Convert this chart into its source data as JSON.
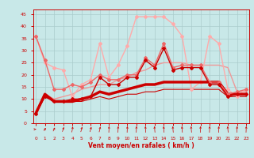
{
  "xlabel": "Vent moyen/en rafales ( km/h )",
  "bg_color": "#c8e8e8",
  "grid_color": "#aacccc",
  "xlim": [
    -0.3,
    23.3
  ],
  "ylim": [
    0,
    47
  ],
  "yticks": [
    0,
    5,
    10,
    15,
    20,
    25,
    30,
    35,
    40,
    45
  ],
  "xticks": [
    0,
    1,
    2,
    3,
    4,
    5,
    6,
    7,
    8,
    9,
    10,
    11,
    12,
    13,
    14,
    15,
    16,
    17,
    18,
    19,
    20,
    21,
    22,
    23
  ],
  "lines": [
    {
      "x": [
        0,
        1,
        2,
        3,
        4,
        5,
        6,
        7,
        8,
        9,
        10,
        11,
        12,
        13,
        14,
        15,
        16,
        17,
        18,
        19,
        20,
        21,
        22,
        23
      ],
      "y": [
        4,
        11,
        9,
        9,
        9,
        9,
        10,
        11,
        10,
        11,
        12,
        12,
        13,
        13,
        14,
        14,
        14,
        14,
        14,
        14,
        14,
        11,
        11,
        11
      ],
      "color": "#cc0000",
      "lw": 0.8,
      "marker": null,
      "zorder": 3
    },
    {
      "x": [
        0,
        1,
        2,
        3,
        4,
        5,
        6,
        7,
        8,
        9,
        10,
        11,
        12,
        13,
        14,
        15,
        16,
        17,
        18,
        19,
        20,
        21,
        22,
        23
      ],
      "y": [
        4,
        12,
        9,
        9,
        9,
        10,
        11,
        13,
        12,
        13,
        14,
        15,
        16,
        16,
        17,
        17,
        17,
        17,
        17,
        17,
        17,
        12,
        12,
        12
      ],
      "color": "#cc0000",
      "lw": 2.5,
      "marker": null,
      "zorder": 4
    },
    {
      "x": [
        0,
        1,
        2,
        3,
        4,
        5,
        6,
        7,
        8,
        9,
        10,
        11,
        12,
        13,
        14,
        15,
        16,
        17,
        18,
        19,
        20,
        21,
        22,
        23
      ],
      "y": [
        4,
        11,
        9,
        9,
        10,
        10,
        11,
        19,
        16,
        16,
        19,
        19,
        26,
        23,
        31,
        22,
        23,
        23,
        23,
        16,
        16,
        11,
        12,
        12
      ],
      "color": "#cc0000",
      "lw": 1.0,
      "marker": "D",
      "ms": 2.0,
      "zorder": 5
    },
    {
      "x": [
        0,
        1,
        2,
        3,
        4,
        5,
        6,
        7,
        8,
        9,
        10,
        11,
        12,
        13,
        14,
        15,
        16,
        17,
        18,
        19,
        20,
        21,
        22,
        23
      ],
      "y": [
        36,
        26,
        14,
        14,
        16,
        15,
        17,
        20,
        18,
        18,
        20,
        20,
        27,
        24,
        33,
        23,
        24,
        24,
        24,
        17,
        17,
        12,
        13,
        14
      ],
      "color": "#ee6666",
      "lw": 1.0,
      "marker": "D",
      "ms": 2.0,
      "zorder": 4
    },
    {
      "x": [
        0,
        1,
        2,
        3,
        4,
        5,
        6,
        7,
        8,
        9,
        10,
        11,
        12,
        13,
        14,
        15,
        16,
        17,
        18,
        19,
        20,
        21,
        22,
        23
      ],
      "y": [
        5,
        12,
        10,
        11,
        12,
        14,
        15,
        16,
        16,
        18,
        19,
        21,
        22,
        24,
        25,
        25,
        25,
        24,
        24,
        24,
        24,
        23,
        13,
        13
      ],
      "color": "#ee9999",
      "lw": 1.0,
      "marker": null,
      "zorder": 3
    },
    {
      "x": [
        0,
        1,
        2,
        3,
        4,
        5,
        6,
        7,
        8,
        9,
        10,
        11,
        12,
        13,
        14,
        15,
        16,
        17,
        18,
        19,
        20,
        21,
        22,
        23
      ],
      "y": [
        36,
        25,
        23,
        22,
        11,
        16,
        18,
        33,
        19,
        24,
        32,
        44,
        44,
        44,
        44,
        41,
        36,
        14,
        17,
        36,
        33,
        14,
        11,
        14
      ],
      "color": "#ffaaaa",
      "lw": 1.0,
      "marker": "D",
      "ms": 2.0,
      "zorder": 3
    }
  ],
  "wind_angles": [
    90,
    50,
    45,
    35,
    20,
    30,
    30,
    25,
    5,
    5,
    5,
    5,
    355,
    350,
    350,
    350,
    350,
    350,
    5,
    5,
    5,
    350,
    5,
    5
  ],
  "label_color": "#cc0000",
  "tick_color": "#cc0000"
}
